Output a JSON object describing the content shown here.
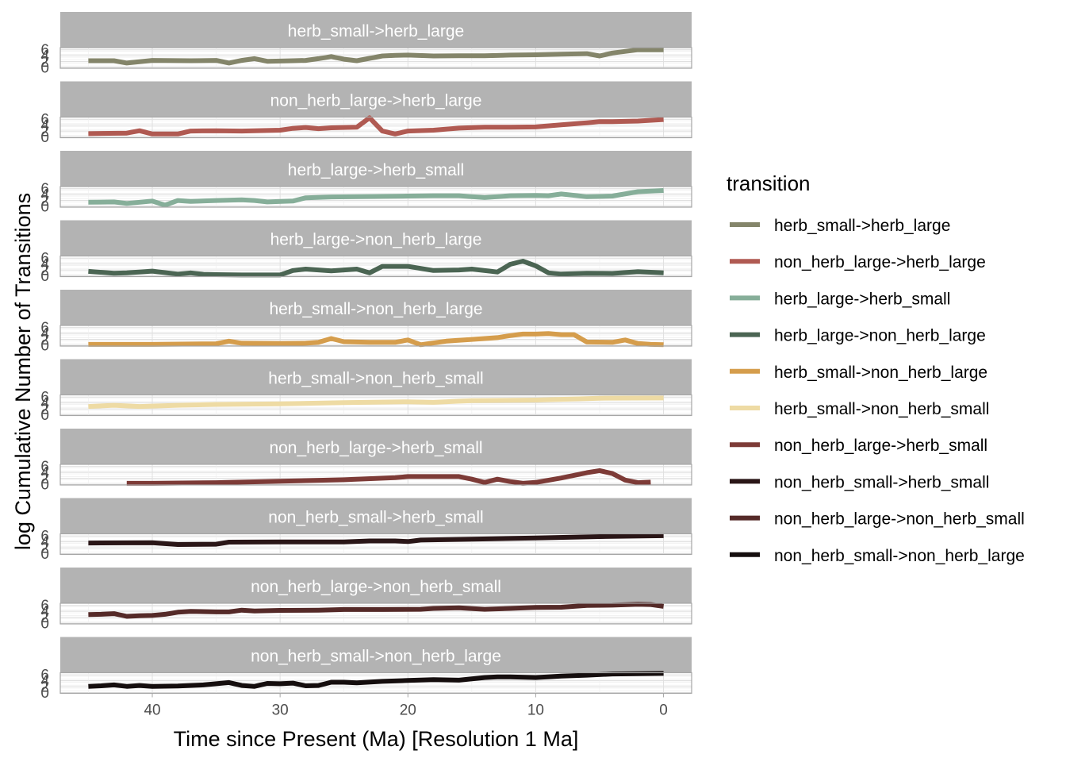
{
  "chart_data": {
    "type": "line",
    "facet": "transition",
    "xlabel": "Time since Present (Ma) [Resolution 1 Ma]",
    "ylabel": "log Cumulative Number of Transitions",
    "x_reversed": true,
    "xlim": [
      47.2,
      -2.2
    ],
    "x_ticks": [
      40,
      30,
      20,
      10,
      0
    ],
    "ylim": [
      0,
      6.2
    ],
    "y_ticks": [
      0,
      2,
      4,
      6
    ],
    "grid": true,
    "legend": {
      "title": "transition",
      "position": "right"
    },
    "series": [
      {
        "name": "herb_small->herb_large",
        "color": "#84856a",
        "x": [
          45,
          43,
          42,
          40,
          37,
          35,
          34,
          33,
          32,
          31,
          29,
          28,
          27,
          26,
          25,
          24,
          23,
          22,
          21,
          20,
          18,
          16,
          14,
          12,
          10,
          8,
          6,
          5,
          4,
          2,
          0
        ],
        "y": [
          2.3,
          2.3,
          1.5,
          2.4,
          2.3,
          2.4,
          1.5,
          2.4,
          3.0,
          2.1,
          2.3,
          2.4,
          3.0,
          3.7,
          2.8,
          2.3,
          3.1,
          3.9,
          4.1,
          4.2,
          3.9,
          4.0,
          4.0,
          4.2,
          4.3,
          4.5,
          4.7,
          3.9,
          4.9,
          6.0,
          6.0
        ]
      },
      {
        "name": "non_herb_large->herb_large",
        "color": "#b05a52",
        "x": [
          45,
          42,
          41,
          40,
          38,
          37,
          35,
          33,
          30,
          29,
          28,
          27,
          26,
          25,
          24,
          23,
          22,
          21,
          20,
          18,
          16,
          14,
          12,
          10,
          8,
          6,
          5,
          4,
          2,
          0
        ],
        "y": [
          1.1,
          1.3,
          2.1,
          1.0,
          1.0,
          2.0,
          2.1,
          2.0,
          2.3,
          2.9,
          3.2,
          2.8,
          3.1,
          3.2,
          3.3,
          6.5,
          2.0,
          1.0,
          2.0,
          2.3,
          3.0,
          3.3,
          3.3,
          3.4,
          4.1,
          4.8,
          5.2,
          5.2,
          5.4,
          5.9
        ]
      },
      {
        "name": "herb_large->herb_small",
        "color": "#86ae99",
        "x": [
          45,
          43,
          42,
          40,
          39,
          38,
          37,
          35,
          33,
          32,
          31,
          29,
          28,
          26,
          24,
          22,
          20,
          18,
          16,
          14,
          12,
          10,
          9,
          8,
          6,
          4,
          2,
          0
        ],
        "y": [
          1.4,
          1.5,
          1.0,
          1.8,
          0.4,
          2.0,
          1.7,
          2.0,
          2.2,
          2.0,
          1.5,
          1.8,
          2.9,
          3.2,
          3.3,
          3.4,
          3.5,
          3.6,
          3.6,
          3.0,
          3.6,
          3.7,
          3.6,
          4.2,
          3.3,
          3.5,
          5.0,
          5.4
        ]
      },
      {
        "name": "herb_large->non_herb_large",
        "color": "#4b6553",
        "x": [
          45,
          43,
          42,
          40,
          38,
          37,
          36,
          35,
          33,
          30,
          29,
          28,
          26,
          24,
          23,
          22,
          20,
          18,
          16,
          15,
          13,
          12,
          11,
          10,
          9,
          8,
          6,
          4,
          2,
          0
        ],
        "y": [
          1.5,
          0.9,
          1.0,
          1.6,
          0.6,
          1.0,
          0.5,
          0.4,
          0.3,
          0.3,
          1.8,
          2.3,
          1.7,
          2.3,
          1.0,
          3.2,
          3.2,
          1.8,
          2.0,
          2.3,
          1.3,
          3.9,
          5.0,
          3.4,
          1.0,
          0.6,
          0.9,
          0.8,
          1.4,
          1.0
        ]
      },
      {
        "name": "herb_small->non_herb_large",
        "color": "#d59d4c",
        "x": [
          45,
          40,
          35,
          34,
          33,
          30,
          28,
          27,
          26,
          25,
          23,
          21,
          20,
          19,
          17,
          15,
          13,
          12,
          11,
          10,
          9,
          8,
          7,
          6,
          4,
          3,
          2,
          1,
          0
        ],
        "y": [
          0.3,
          0.3,
          0.5,
          1.4,
          0.7,
          0.6,
          0.7,
          1.0,
          2.3,
          1.2,
          1.0,
          1.0,
          1.8,
          0.2,
          1.4,
          2.0,
          2.6,
          3.3,
          3.8,
          3.8,
          4.0,
          3.6,
          3.6,
          1.1,
          1.0,
          1.8,
          0.6,
          0.3,
          0.2
        ]
      },
      {
        "name": "herb_small->non_herb_small",
        "color": "#eedba4",
        "x": [
          45,
          43,
          41,
          38,
          35,
          30,
          25,
          20,
          18,
          15,
          10,
          5,
          0
        ],
        "y": [
          2.8,
          3.2,
          2.8,
          3.2,
          3.5,
          3.7,
          4.1,
          4.4,
          4.2,
          4.8,
          5.0,
          5.6,
          5.7
        ]
      },
      {
        "name": "non_herb_large->herb_small",
        "color": "#7d3b37",
        "x": [
          42,
          40,
          35,
          30,
          25,
          21,
          20,
          18,
          16,
          15,
          14,
          13,
          12,
          11,
          10,
          8,
          6,
          5,
          4,
          3,
          2,
          1
        ],
        "y": [
          0.3,
          0.3,
          0.5,
          1.0,
          1.5,
          2.2,
          2.6,
          2.6,
          2.6,
          1.7,
          0.6,
          1.7,
          0.9,
          0.3,
          0.6,
          2.1,
          3.9,
          4.6,
          3.6,
          1.4,
          0.5,
          0.7
        ]
      },
      {
        "name": "non_herb_small->herb_small",
        "color": "#2a1617",
        "x": [
          45,
          40,
          38,
          35,
          34,
          30,
          25,
          23,
          21,
          20,
          19,
          15,
          10,
          5,
          0
        ],
        "y": [
          3.6,
          3.7,
          3.1,
          3.2,
          3.9,
          4.0,
          4.0,
          4.3,
          4.3,
          4.1,
          4.6,
          4.9,
          5.3,
          5.8,
          6.1
        ]
      },
      {
        "name": "non_herb_large->non_herb_small",
        "color": "#552a28",
        "x": [
          45,
          44,
          43,
          42,
          41,
          40,
          39,
          38,
          37,
          35,
          34,
          33,
          32,
          30,
          27,
          25,
          22,
          19,
          18,
          16,
          14,
          12,
          10,
          8,
          6,
          4,
          2,
          1,
          0
        ],
        "y": [
          2.9,
          3.0,
          3.2,
          2.3,
          2.5,
          2.6,
          3.0,
          3.7,
          4.0,
          3.8,
          3.8,
          4.4,
          4.1,
          4.3,
          4.4,
          4.6,
          4.6,
          4.7,
          5.0,
          5.2,
          4.7,
          5.0,
          5.3,
          5.4,
          6.0,
          6.1,
          6.4,
          6.3,
          5.7
        ]
      },
      {
        "name": "non_herb_small->non_herb_large",
        "color": "#150e0e",
        "x": [
          45,
          44,
          43,
          42,
          41,
          40,
          38,
          36,
          35,
          34,
          33,
          32,
          31,
          30,
          29,
          28,
          27,
          26,
          25,
          24,
          22,
          20,
          18,
          16,
          14,
          13,
          12,
          10,
          8,
          6,
          4,
          2,
          0
        ],
        "y": [
          2.1,
          2.3,
          2.6,
          2.1,
          2.4,
          2.1,
          2.2,
          2.6,
          3.0,
          3.4,
          2.4,
          2.1,
          3.1,
          3.0,
          3.2,
          2.3,
          2.4,
          3.5,
          3.5,
          3.3,
          3.8,
          4.1,
          4.4,
          4.2,
          5.1,
          5.3,
          5.3,
          5.1,
          5.6,
          5.9,
          6.3,
          6.4,
          6.5
        ]
      }
    ]
  }
}
